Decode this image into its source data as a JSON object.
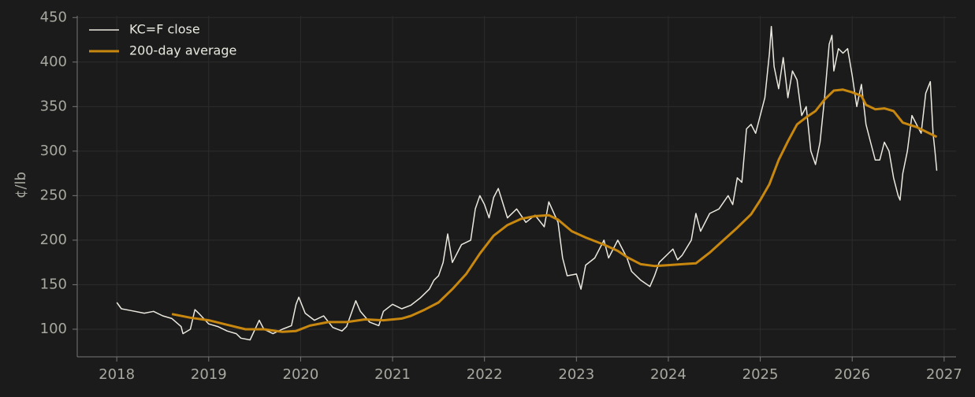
{
  "chart_data": {
    "type": "line",
    "ylabel": "¢/lb",
    "xlim": [
      2017.57,
      2027.13
    ],
    "ylim": [
      69,
      452
    ],
    "xticks": [
      2018,
      2019,
      2020,
      2021,
      2022,
      2023,
      2024,
      2025,
      2026,
      2027
    ],
    "yticks": [
      100,
      150,
      200,
      250,
      300,
      350,
      400,
      450
    ],
    "grid": true,
    "legend": "upper left",
    "series": [
      {
        "name": "KC=F close",
        "color": "#ebe8df",
        "width": 1.5,
        "x": [
          2018.0,
          2018.05,
          2018.15,
          2018.3,
          2018.4,
          2018.5,
          2018.6,
          2018.7,
          2018.72,
          2018.8,
          2018.85,
          2018.9,
          2019.0,
          2019.1,
          2019.2,
          2019.3,
          2019.35,
          2019.45,
          2019.55,
          2019.6,
          2019.7,
          2019.8,
          2019.9,
          2019.95,
          2019.98,
          2020.05,
          2020.15,
          2020.25,
          2020.35,
          2020.45,
          2020.5,
          2020.6,
          2020.65,
          2020.75,
          2020.85,
          2020.9,
          2021.0,
          2021.1,
          2021.2,
          2021.3,
          2021.4,
          2021.45,
          2021.5,
          2021.55,
          2021.6,
          2021.65,
          2021.75,
          2021.85,
          2021.9,
          2021.95,
          2022.0,
          2022.05,
          2022.1,
          2022.15,
          2022.25,
          2022.35,
          2022.45,
          2022.55,
          2022.65,
          2022.7,
          2022.8,
          2022.85,
          2022.9,
          2023.0,
          2023.05,
          2023.1,
          2023.2,
          2023.3,
          2023.35,
          2023.45,
          2023.55,
          2023.6,
          2023.7,
          2023.8,
          2023.85,
          2023.9,
          2024.0,
          2024.05,
          2024.1,
          2024.15,
          2024.25,
          2024.3,
          2024.35,
          2024.45,
          2024.55,
          2024.65,
          2024.7,
          2024.75,
          2024.8,
          2024.85,
          2024.9,
          2024.95,
          2025.05,
          2025.1,
          2025.12,
          2025.15,
          2025.2,
          2025.25,
          2025.3,
          2025.35,
          2025.4,
          2025.45,
          2025.5,
          2025.55,
          2025.6,
          2025.65,
          2025.7,
          2025.75,
          2025.78,
          2025.8,
          2025.85,
          2025.9,
          2025.95,
          2026.0,
          2026.05,
          2026.1,
          2026.15,
          2026.2,
          2026.25,
          2026.3,
          2026.35,
          2026.4,
          2026.45,
          2026.5,
          2026.52,
          2026.55,
          2026.6,
          2026.65,
          2026.7,
          2026.75,
          2026.8,
          2026.85,
          2026.88,
          2026.9,
          2026.92
        ],
        "values": [
          130,
          123,
          121,
          118,
          120,
          115,
          112,
          103,
          95,
          100,
          122,
          117,
          106,
          103,
          98,
          95,
          90,
          88,
          110,
          100,
          95,
          100,
          104,
          128,
          136,
          118,
          110,
          115,
          102,
          98,
          103,
          132,
          120,
          108,
          104,
          120,
          128,
          123,
          127,
          135,
          145,
          155,
          160,
          175,
          207,
          175,
          195,
          200,
          235,
          250,
          240,
          225,
          248,
          258,
          225,
          235,
          220,
          228,
          215,
          243,
          220,
          180,
          160,
          162,
          145,
          172,
          180,
          200,
          180,
          200,
          180,
          165,
          155,
          148,
          160,
          175,
          185,
          190,
          178,
          183,
          200,
          230,
          210,
          230,
          235,
          250,
          240,
          270,
          265,
          325,
          330,
          320,
          360,
          410,
          440,
          395,
          370,
          405,
          360,
          390,
          380,
          340,
          350,
          300,
          285,
          310,
          360,
          420,
          430,
          390,
          415,
          410,
          415,
          385,
          350,
          375,
          330,
          310,
          290,
          290,
          310,
          300,
          270,
          250,
          245,
          275,
          300,
          340,
          330,
          320,
          365,
          378,
          320,
          300,
          278
        ]
      },
      {
        "name": "200-day average",
        "color": "#c8870f",
        "width": 3,
        "x": [
          2018.6,
          2018.8,
          2019.0,
          2019.2,
          2019.4,
          2019.6,
          2019.8,
          2019.95,
          2020.1,
          2020.3,
          2020.5,
          2020.7,
          2020.9,
          2021.1,
          2021.2,
          2021.35,
          2021.5,
          2021.65,
          2021.8,
          2021.95,
          2022.1,
          2022.25,
          2022.4,
          2022.55,
          2022.7,
          2022.8,
          2022.95,
          2023.1,
          2023.3,
          2023.45,
          2023.55,
          2023.7,
          2023.85,
          2024.0,
          2024.15,
          2024.3,
          2024.45,
          2024.6,
          2024.75,
          2024.9,
          2025.0,
          2025.1,
          2025.2,
          2025.3,
          2025.4,
          2025.5,
          2025.6,
          2025.7,
          2025.8,
          2025.9,
          2026.0,
          2026.1,
          2026.15,
          2026.25,
          2026.35,
          2026.45,
          2026.55,
          2026.7,
          2026.8,
          2026.92
        ],
        "values": [
          117,
          113,
          110,
          105,
          100,
          100,
          97,
          98,
          104,
          108,
          108,
          111,
          110,
          112,
          115,
          122,
          130,
          145,
          162,
          185,
          205,
          217,
          224,
          227,
          228,
          223,
          210,
          203,
          195,
          188,
          181,
          173,
          171,
          172,
          173,
          174,
          186,
          200,
          214,
          229,
          245,
          263,
          290,
          311,
          330,
          338,
          345,
          358,
          368,
          369,
          366,
          362,
          352,
          347,
          348,
          345,
          332,
          327,
          322,
          316
        ]
      }
    ]
  }
}
